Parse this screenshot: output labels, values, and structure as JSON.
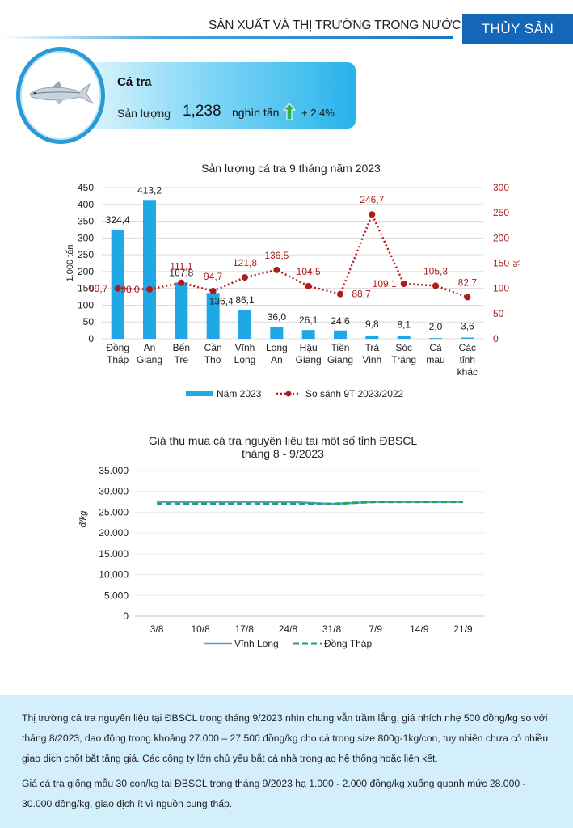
{
  "header": {
    "section_title": "SẢN XUẤT VÀ THỊ TRƯỜNG TRONG NƯỚC",
    "category_tab": "THỦY SẢN"
  },
  "summary_card": {
    "icon": "fish-icon",
    "product_name": "Cá tra",
    "metric_label": "Sản lượng",
    "value": "1,238",
    "unit": "nghìn tấn",
    "trend_icon": "arrow-up-icon",
    "change": "+ 2,4%",
    "accent_color": "#1ea9e6",
    "trend_color": "#2bb34a"
  },
  "chart_data": [
    {
      "type": "bar",
      "title": "Sản lượng cá tra 9 tháng năm 2023",
      "categories": [
        [
          "Đồng",
          "Tháp"
        ],
        [
          "An",
          "Giang"
        ],
        [
          "Bến",
          "Tre"
        ],
        [
          "Cần",
          "Thơ"
        ],
        [
          "Vĩnh",
          "Long"
        ],
        [
          "Long",
          "An"
        ],
        [
          "Hậu",
          "Giang"
        ],
        [
          "Tiền",
          "Giang"
        ],
        [
          "Trà",
          "Vinh"
        ],
        [
          "Sóc",
          "Trăng"
        ],
        [
          "Cà",
          "mau"
        ],
        [
          "Các",
          "tỉnh",
          "khác"
        ]
      ],
      "ylabel": "1.000 tấn",
      "y2label": "%",
      "ylim": [
        0,
        450
      ],
      "yticks": [
        0,
        50,
        100,
        150,
        200,
        250,
        300,
        350,
        400,
        450
      ],
      "y2lim": [
        0,
        300
      ],
      "y2ticks": [
        0,
        50,
        100,
        150,
        200,
        250,
        300
      ],
      "grid": true,
      "legend_position": "bottom",
      "series": [
        {
          "name": "Năm 2023",
          "kind": "bar",
          "axis": "left",
          "color": "#1ea9e6",
          "values": [
            324.4,
            413.2,
            167.8,
            136.4,
            86.1,
            36.0,
            26.1,
            24.6,
            9.8,
            8.1,
            2.0,
            3.6
          ],
          "labels": [
            "324,4",
            "413,2",
            "167,8",
            "136,4",
            "86,1",
            "36,0",
            "26,1",
            "24,6",
            "9,8",
            "8,1",
            "2,0",
            "3,6"
          ]
        },
        {
          "name": "So sánh 9T 2023/2022",
          "kind": "line-dotted-markers",
          "axis": "right",
          "color": "#b01c1c",
          "values": [
            99.7,
            98.0,
            111.1,
            94.7,
            121.8,
            136.5,
            104.5,
            88.7,
            246.7,
            109.1,
            105.3,
            82.7
          ],
          "labels": [
            "99,7",
            "98,0",
            "111,1",
            "94,7",
            "121,8",
            "136,5",
            "104,5",
            "88,7",
            "246,7",
            "109,1",
            "105,3",
            "82,7"
          ]
        }
      ]
    },
    {
      "type": "line",
      "title": "Giá thu mua cá tra nguyên liệu tại một số tỉnh ĐBSCL",
      "subtitle": "tháng  8 - 9/2023",
      "x": [
        "3/8",
        "10/8",
        "17/8",
        "24/8",
        "31/8",
        "7/9",
        "14/9",
        "21/9"
      ],
      "ylabel": "đ/kg",
      "ylim": [
        0,
        35000
      ],
      "yticks": [
        0,
        5000,
        10000,
        15000,
        20000,
        25000,
        30000,
        35000
      ],
      "ytick_labels": [
        "0",
        "5.000",
        "10.000",
        "15.000",
        "20.000",
        "25.000",
        "30.000",
        "35.000"
      ],
      "grid": true,
      "legend_position": "bottom",
      "series": [
        {
          "name": "Vĩnh Long",
          "style": "solid",
          "color": "#5b9bd5",
          "values": [
            27500,
            27500,
            27500,
            27500,
            27000,
            27500,
            27500,
            27500
          ]
        },
        {
          "name": "Đồng Tháp",
          "style": "dashed",
          "color": "#1fa55a",
          "values": [
            27000,
            27000,
            27000,
            27000,
            27000,
            27500,
            27500,
            27500
          ]
        }
      ]
    }
  ],
  "commentary": {
    "paragraph_1": "Thị trường cá tra nguyên liệu tại ĐBSCL trong tháng 9/2023 nhìn chung vẫn trầm lắng, giá nhích nhẹ 500 đồng/kg so với tháng 8/2023, dao động trong khoảng 27.000 – 27.500 đồng/kg cho cá trong size 800g-1kg/con, tuy nhiên chưa có nhiều giao dịch chốt bắt tăng giá. Các công ty lớn chủ yếu bắt cá nhà trong ao hệ thống hoặc liên kết.",
    "paragraph_2": "Giá cá tra giống mẫu 30 con/kg tai ĐBSCL trong tháng 9/2023 hạ 1.000 - 2.000 đồng/kg xuống quanh mức 28.000 - 30.000 đồng/kg, giao dịch ít vì nguồn cung thấp."
  }
}
